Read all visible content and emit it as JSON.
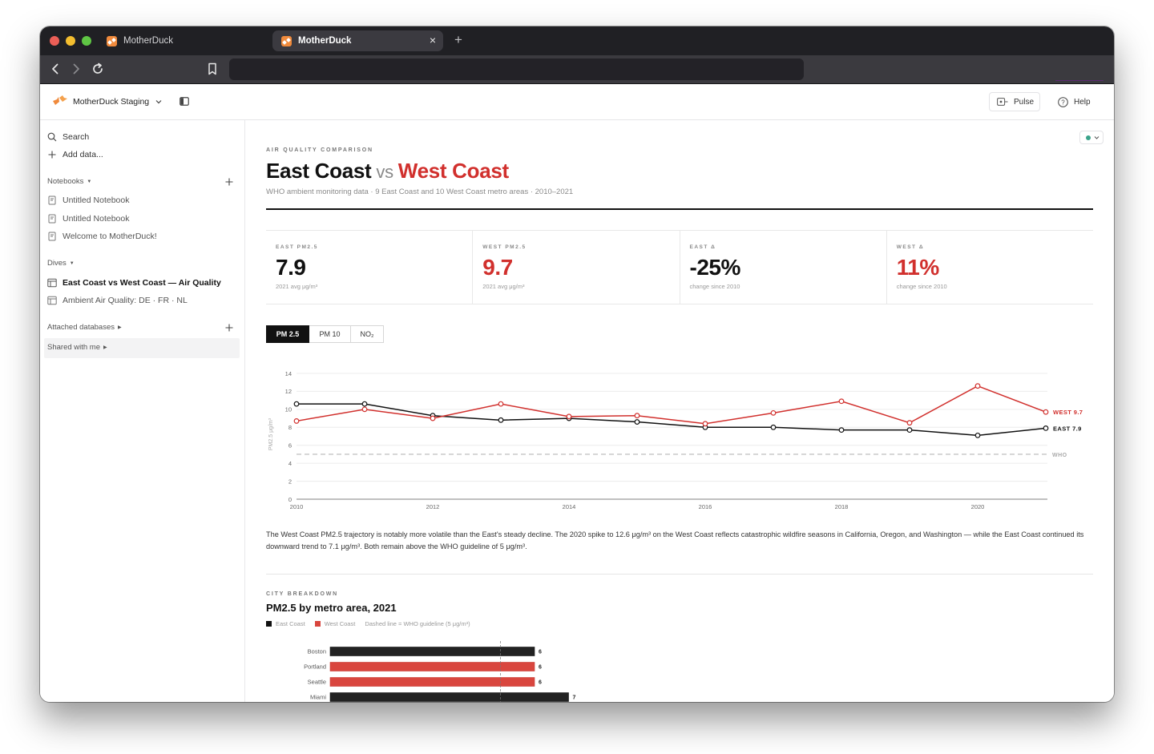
{
  "browser": {
    "tabs": [
      {
        "title": "MotherDuck",
        "active": false,
        "icon": "motherduck-favicon"
      },
      {
        "title": "MotherDuck",
        "active": true,
        "icon": "motherduck-favicon"
      }
    ],
    "close_tab_icon": "×",
    "new_tab_icon": "+",
    "url": "",
    "nav_icons": [
      "back-arrow-icon",
      "forward-arrow-icon",
      "reload-icon",
      "bookmark-icon"
    ]
  },
  "app_header": {
    "workspace": "MotherDuck Staging",
    "pulse_label": "Pulse",
    "help_label": "Help",
    "icons": [
      "motherduck-logo",
      "chevron-down-icon",
      "sidebar-toggle-icon",
      "pulse-icon",
      "help-icon"
    ]
  },
  "sidebar": {
    "search": "Search",
    "add_data": "Add data...",
    "notebooks_label": "Notebooks",
    "notebooks": [
      "Untitled Notebook",
      "Untitled Notebook",
      "Welcome to MotherDuck!"
    ],
    "dives_label": "Dives",
    "dives": [
      "East Coast vs West Coast — Air Quality",
      "Ambient Air Quality: DE · FR · NL"
    ],
    "active_dive_index": 0,
    "attached_label": "Attached databases",
    "shared_label": "Shared with me",
    "caret_down": "▼",
    "caret_right": "▶"
  },
  "dive": {
    "eyebrow": "AIR QUALITY COMPARISON",
    "title_east": "East Coast",
    "title_vs": "vs",
    "title_west": "West Coast",
    "subtitle": "WHO ambient monitoring data · 9 East Coast and 10 West Coast metro areas · 2010–2021",
    "status_color": "#3aa38a",
    "kpis": [
      {
        "label": "EAST PM2.5",
        "value": "7.9",
        "sub": "2021 avg μg/m³",
        "color": "#111111"
      },
      {
        "label": "WEST PM2.5",
        "value": "9.7",
        "sub": "2021 avg μg/m³",
        "color": "#d1302d"
      },
      {
        "label": "EAST Δ",
        "value": "-25%",
        "sub": "change since 2010",
        "color": "#111111"
      },
      {
        "label": "WEST Δ",
        "value": "11%",
        "sub": "change since 2010",
        "color": "#d1302d"
      }
    ],
    "toggles": [
      {
        "label": "PM 2.5",
        "active": true
      },
      {
        "label": "PM 10",
        "active": false
      },
      {
        "label": "NO₂",
        "active": false
      }
    ],
    "narrative": "The West Coast PM2.5 trajectory is notably more volatile than the East's steady decline. The 2020 spike to 12.6 μg/m³ on the West Coast reflects catastrophic wildfire seasons in California, Oregon, and Washington — while the East Coast continued its downward trend to 7.1 μg/m³. Both remain above the WHO guideline of 5 μg/m³.",
    "breakdown_eyebrow": "CITY BREAKDOWN",
    "breakdown_title": "PM2.5 by metro area, 2021",
    "legend": {
      "east": "East Coast",
      "west": "West Coast",
      "note": "Dashed line = WHO guideline (5 μg/m³)"
    }
  },
  "colors": {
    "east": "#111111",
    "west": "#d1302d",
    "west_bar": "#d9463e",
    "who_line": "#b8b8b8",
    "accent_loading": "#5b2a73"
  },
  "chart_data": [
    {
      "type": "line",
      "title": "PM2.5 trend",
      "x": [
        2010,
        2011,
        2012,
        2013,
        2014,
        2015,
        2016,
        2017,
        2018,
        2019,
        2020,
        2021
      ],
      "xticks": [
        2010,
        2012,
        2014,
        2016,
        2018,
        2020
      ],
      "series": [
        {
          "name": "EAST",
          "end_label": "EAST 7.9",
          "values": [
            10.6,
            10.6,
            9.3,
            8.8,
            9.0,
            8.6,
            8.0,
            8.0,
            7.7,
            7.7,
            7.1,
            7.9
          ]
        },
        {
          "name": "WEST",
          "end_label": "WEST 9.7",
          "values": [
            8.7,
            10.0,
            9.0,
            10.6,
            9.2,
            9.3,
            8.4,
            9.6,
            10.9,
            8.5,
            12.6,
            9.7
          ]
        }
      ],
      "reference_line": {
        "label": "WHO",
        "value": 5
      },
      "xlabel": "",
      "ylabel": "PM2.5 μg/m³",
      "ylim": [
        0,
        14
      ],
      "yticks": [
        0,
        2,
        4,
        6,
        8,
        10,
        12,
        14
      ],
      "grid": true,
      "legend": "end-of-line labels"
    },
    {
      "type": "bar",
      "orientation": "horizontal",
      "title": "PM2.5 by metro area, 2021",
      "categories": [
        "Boston",
        "Portland",
        "Seattle",
        "Miami"
      ],
      "values": [
        6,
        6,
        6,
        7
      ],
      "groups": [
        "East Coast",
        "West Coast",
        "West Coast",
        "East Coast"
      ],
      "reference_line": {
        "label": "WHO guideline",
        "value": 5
      },
      "xlabel": "",
      "ylabel": "",
      "legend": [
        "East Coast",
        "West Coast"
      ]
    }
  ]
}
